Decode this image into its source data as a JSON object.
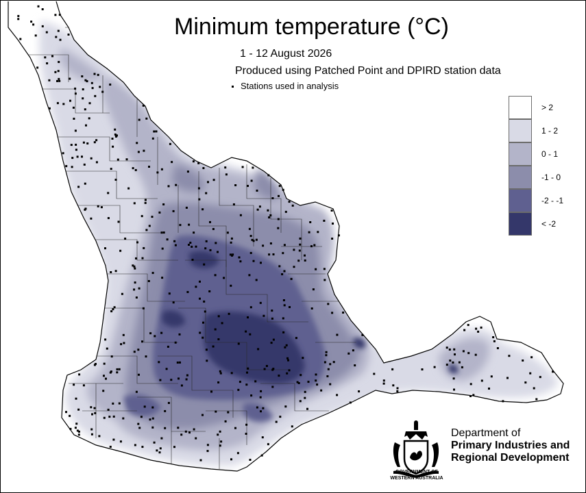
{
  "title": "Minimum temperature (°C)",
  "subtitle_dates": "1 - 12 August 2026",
  "subtitle_source": "Produced using Patched Point and DPIRD station data",
  "stations_key": "Stations used in analysis",
  "legend": [
    {
      "label": "> 2",
      "color": "#ffffff"
    },
    {
      "label": "1 - 2",
      "color": "#d9dae6"
    },
    {
      "label": "0 - 1",
      "color": "#b3b4c9"
    },
    {
      "label": "-1 - 0",
      "color": "#8c8dab"
    },
    {
      "label": "-2 - -1",
      "color": "#5f6090"
    },
    {
      "label": "< -2",
      "color": "#34376a"
    }
  ],
  "department": {
    "line1": "Department of",
    "line2": "Primary Industries and",
    "line3": "Regional Development"
  },
  "government": {
    "line1": "GOVERNMENT OF",
    "line2": "WESTERN AUSTRALIA"
  },
  "crest_icon": "coat-of-arms-icon"
}
